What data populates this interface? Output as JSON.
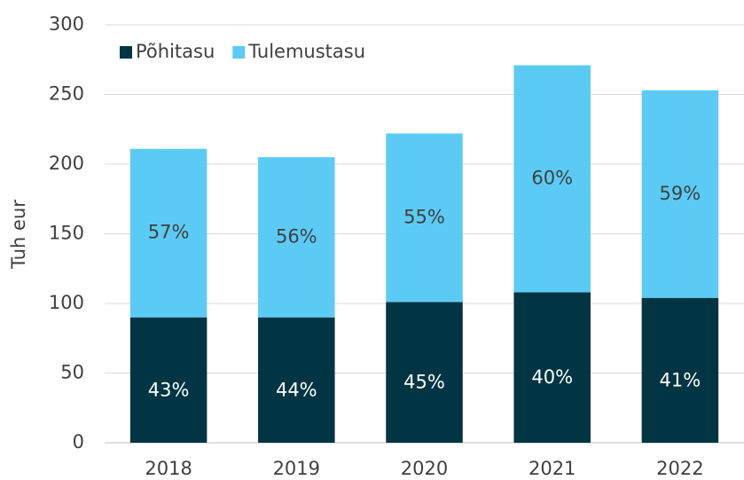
{
  "chart_data": {
    "type": "stacked_bar",
    "categories": [
      "2018",
      "2019",
      "2020",
      "2021",
      "2022"
    ],
    "series": [
      {
        "name": "Põhitasu",
        "color": "#013543",
        "values": [
          90,
          90,
          101,
          108,
          104
        ],
        "percent_labels": [
          "43%",
          "44%",
          "45%",
          "40%",
          "41%"
        ]
      },
      {
        "name": "Tulemustasu",
        "color": "#5bcbf5",
        "values": [
          121,
          115,
          121,
          163,
          149
        ],
        "percent_labels": [
          "57%",
          "56%",
          "55%",
          "60%",
          "59%"
        ]
      }
    ],
    "ylabel": "Tuh eur",
    "ylim": [
      0,
      300
    ],
    "yticks": [
      0,
      50,
      100,
      150,
      200,
      250,
      300
    ],
    "grid": true,
    "legend": "top-left"
  }
}
